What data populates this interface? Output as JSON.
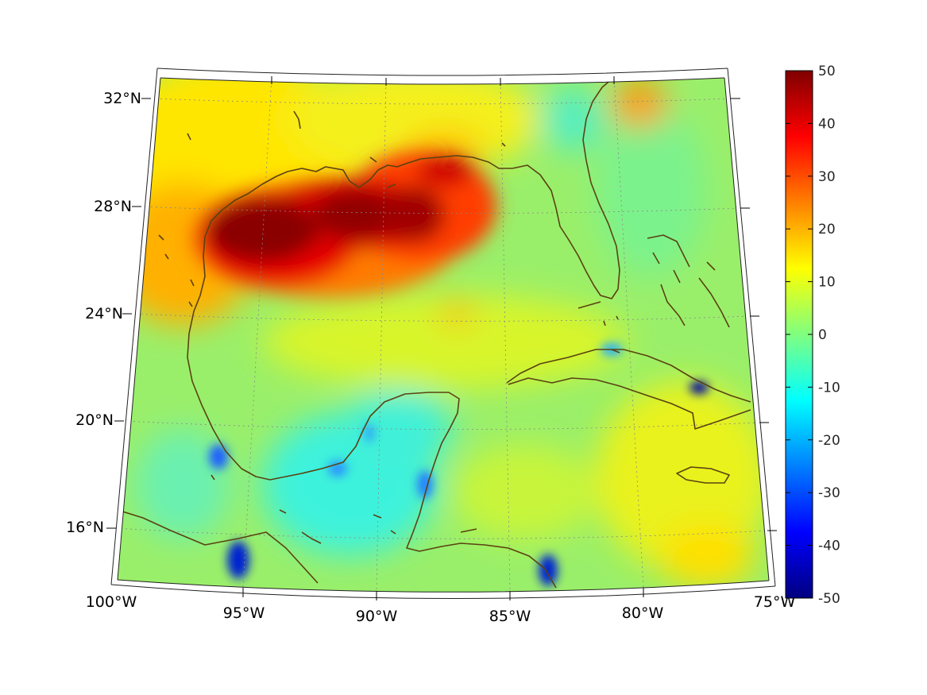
{
  "map": {
    "type": "heatmap",
    "longitude_labels": [
      "100°W",
      "95°W",
      "90°W",
      "85°W",
      "80°W",
      "75°W"
    ],
    "latitude_labels": [
      "32°N",
      "28°N",
      "24°N",
      "20°N",
      "16°N"
    ],
    "lon_range": [
      -100,
      -75
    ],
    "lat_range": [
      14,
      33
    ],
    "colormap": "jet",
    "coastline_color": "#5a4212",
    "gridlines": true
  },
  "colorbar": {
    "range": [
      -50,
      50
    ],
    "tick_labels": [
      "50",
      "40",
      "30",
      "20",
      "10",
      "0",
      "-10",
      "-20",
      "-30",
      "-40",
      "-50"
    ]
  }
}
